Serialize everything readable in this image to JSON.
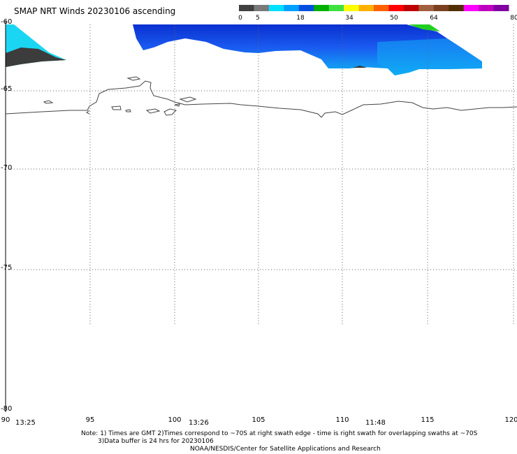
{
  "title": "SMAP NRT Winds 20230106 ascending",
  "colorbar": {
    "ticks": [
      "0",
      "5",
      "18",
      "34",
      "50",
      "64",
      "80"
    ],
    "colors": [
      "#404040",
      "#7a7a7a",
      "#00e0ff",
      "#00a0ff",
      "#0050e0",
      "#00b000",
      "#40e040",
      "#ffff00",
      "#ffb000",
      "#ff6000",
      "#ff0000",
      "#c00000",
      "#a06040",
      "#7a4020",
      "#503000",
      "#ff00ff",
      "#c000c0",
      "#8000a0"
    ]
  },
  "axes": {
    "lat_labels": [
      "-60",
      "-65",
      "-70",
      "-75",
      "-80"
    ],
    "lon_labels": [
      "90",
      "95",
      "100",
      "105",
      "110",
      "115",
      "120"
    ]
  },
  "times": [
    "13:25",
    "13:26",
    "11:48"
  ],
  "notes": {
    "line1": "Note: 1) Times are GMT 2)Times correspond to ~70S at right swath edge - time is right swath for overlapping swaths at ~70S",
    "line2": "3)Data buffer is 24 hrs for 20230106",
    "line3": "NOAA/NESDIS/Center for Satellite Applications and Research"
  }
}
